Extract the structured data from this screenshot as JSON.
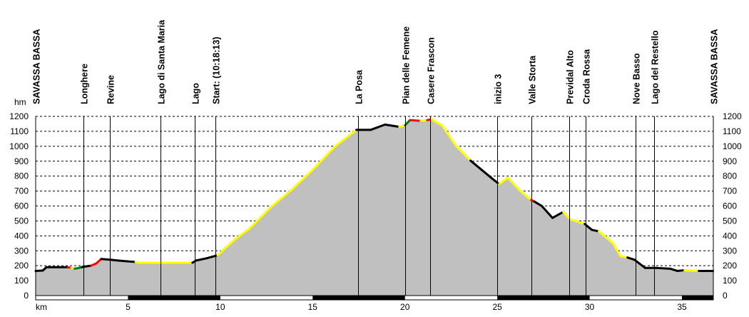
{
  "chart_data": {
    "type": "area",
    "title": "",
    "xlabel": "km",
    "ylabel": "hm",
    "xlim": [
      0,
      36.7
    ],
    "ylim": [
      0,
      1200
    ],
    "x_ticks": [
      5,
      10,
      15,
      20,
      25,
      30,
      35
    ],
    "y_ticks": [
      0,
      100,
      200,
      300,
      400,
      500,
      600,
      700,
      800,
      900,
      1000,
      1100,
      1200
    ],
    "grid": "horizontal dashed",
    "fill_color": "#c0c0c0",
    "segment_colors": {
      "k": "#000000",
      "y": "#ffff00",
      "r": "#ff0000",
      "g": "#008000"
    },
    "profile": [
      {
        "km": 0,
        "ele": 165,
        "c": "k"
      },
      {
        "km": 0.39,
        "ele": 168,
        "c": "k"
      },
      {
        "km": 0.58,
        "ele": 190,
        "c": "k"
      },
      {
        "km": 1.74,
        "ele": 190,
        "c": "k"
      },
      {
        "km": 1.93,
        "ele": 185,
        "c": "r"
      },
      {
        "km": 2.1,
        "ele": 180,
        "c": "y"
      },
      {
        "km": 2.32,
        "ele": 185,
        "c": "g"
      },
      {
        "km": 2.5,
        "ele": 190,
        "c": "g"
      },
      {
        "km": 2.7,
        "ele": 195,
        "c": "k"
      },
      {
        "km": 3.0,
        "ele": 200,
        "c": "k"
      },
      {
        "km": 3.28,
        "ele": 215,
        "c": "r"
      },
      {
        "km": 3.55,
        "ele": 245,
        "c": "r"
      },
      {
        "km": 4.05,
        "ele": 240,
        "c": "k"
      },
      {
        "km": 4.44,
        "ele": 235,
        "c": "k"
      },
      {
        "km": 5.41,
        "ele": 225,
        "c": "k"
      },
      {
        "km": 5.6,
        "ele": 220,
        "c": "y"
      },
      {
        "km": 8.49,
        "ele": 220,
        "c": "y"
      },
      {
        "km": 8.69,
        "ele": 235,
        "c": "k"
      },
      {
        "km": 9.27,
        "ele": 250,
        "c": "k"
      },
      {
        "km": 9.85,
        "ele": 270,
        "c": "k"
      },
      {
        "km": 10.23,
        "ele": 315,
        "c": "y"
      },
      {
        "km": 10.81,
        "ele": 378,
        "c": "y"
      },
      {
        "km": 11.58,
        "ele": 450,
        "c": "y"
      },
      {
        "km": 12.74,
        "ele": 593,
        "c": "y"
      },
      {
        "km": 13.9,
        "ele": 713,
        "c": "y"
      },
      {
        "km": 15.06,
        "ele": 850,
        "c": "y"
      },
      {
        "km": 16.22,
        "ele": 1000,
        "c": "y"
      },
      {
        "km": 17.37,
        "ele": 1110,
        "c": "y"
      },
      {
        "km": 18.15,
        "ele": 1110,
        "c": "k"
      },
      {
        "km": 18.92,
        "ele": 1145,
        "c": "k"
      },
      {
        "km": 19.69,
        "ele": 1130,
        "c": "k"
      },
      {
        "km": 20.0,
        "ele": 1140,
        "c": "y"
      },
      {
        "km": 20.27,
        "ele": 1175,
        "c": "g"
      },
      {
        "km": 20.85,
        "ele": 1170,
        "c": "r"
      },
      {
        "km": 21.2,
        "ele": 1175,
        "c": "y"
      },
      {
        "km": 21.43,
        "ele": 1180,
        "c": "r"
      },
      {
        "km": 22.01,
        "ele": 1140,
        "c": "y"
      },
      {
        "km": 22.78,
        "ele": 1000,
        "c": "y"
      },
      {
        "km": 23.55,
        "ele": 904,
        "c": "y"
      },
      {
        "km": 24.71,
        "ele": 785,
        "c": "k"
      },
      {
        "km": 25.1,
        "ele": 746,
        "c": "k"
      },
      {
        "km": 25.56,
        "ele": 790,
        "c": "y"
      },
      {
        "km": 26.25,
        "ele": 700,
        "c": "y"
      },
      {
        "km": 26.83,
        "ele": 640,
        "c": "y"
      },
      {
        "km": 27.0,
        "ele": 630,
        "c": "r"
      },
      {
        "km": 27.41,
        "ele": 600,
        "c": "k"
      },
      {
        "km": 27.99,
        "ele": 520,
        "c": "k"
      },
      {
        "km": 28.57,
        "ele": 560,
        "c": "k"
      },
      {
        "km": 28.96,
        "ele": 510,
        "c": "y"
      },
      {
        "km": 29.73,
        "ele": 480,
        "c": "y"
      },
      {
        "km": 30.12,
        "ele": 440,
        "c": "k"
      },
      {
        "km": 30.5,
        "ele": 430,
        "c": "k"
      },
      {
        "km": 31.27,
        "ele": 350,
        "c": "y"
      },
      {
        "km": 31.66,
        "ele": 265,
        "c": "y"
      },
      {
        "km": 32.05,
        "ele": 255,
        "c": "y"
      },
      {
        "km": 32.43,
        "ele": 240,
        "c": "k"
      },
      {
        "km": 33.01,
        "ele": 185,
        "c": "k"
      },
      {
        "km": 33.59,
        "ele": 185,
        "c": "k"
      },
      {
        "km": 34.36,
        "ele": 180,
        "c": "k"
      },
      {
        "km": 34.75,
        "ele": 165,
        "c": "k"
      },
      {
        "km": 35.14,
        "ele": 170,
        "c": "k"
      },
      {
        "km": 35.91,
        "ele": 165,
        "c": "y"
      },
      {
        "km": 36.68,
        "ele": 165,
        "c": "k"
      }
    ],
    "waypoints": [
      {
        "km": 0,
        "label": "SAVASSA BASSA"
      },
      {
        "km": 2.6,
        "label": "Longhere"
      },
      {
        "km": 4.0,
        "label": "Revine"
      },
      {
        "km": 6.75,
        "label": "Lago di Santa Maria"
      },
      {
        "km": 8.6,
        "label": "Lago"
      },
      {
        "km": 9.75,
        "label": "Start: (10:18:13)"
      },
      {
        "km": 17.45,
        "label": "La Posa"
      },
      {
        "km": 20.0,
        "label": "Pian delle Femene"
      },
      {
        "km": 21.35,
        "label": "Casere Frascon"
      },
      {
        "km": 25.0,
        "label": "inizio 3"
      },
      {
        "km": 26.85,
        "label": "Valle Storta"
      },
      {
        "km": 28.9,
        "label": "Previdal Alto"
      },
      {
        "km": 29.8,
        "label": "Croda Rossa"
      },
      {
        "km": 32.5,
        "label": "Nove Basso"
      },
      {
        "km": 33.5,
        "label": "Lago del Restello"
      },
      {
        "km": 36.7,
        "label": "SAVASSA BASSA"
      }
    ]
  }
}
